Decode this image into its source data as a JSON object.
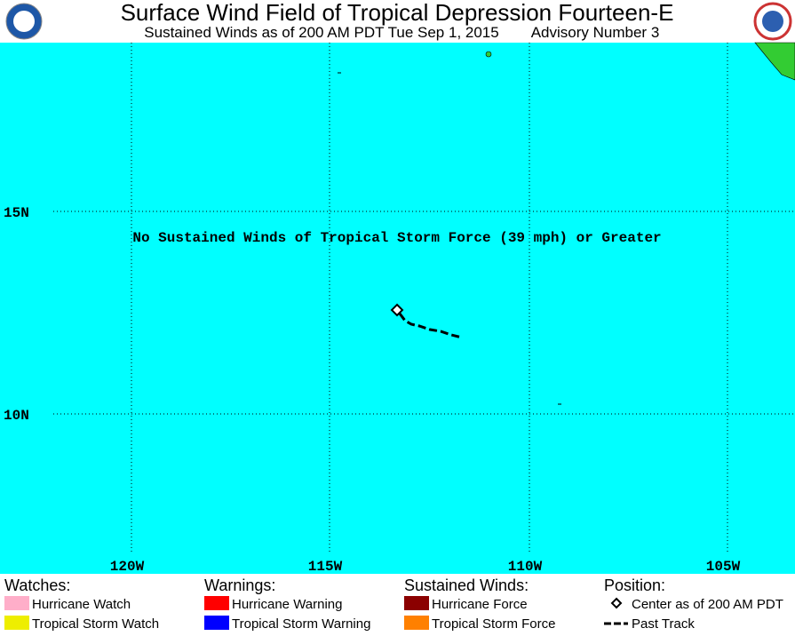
{
  "header": {
    "title": "Surface Wind Field of Tropical Depression Fourteen-E",
    "subtitle": "Sustained Winds as of 200 AM PDT Tue Sep 1, 2015",
    "advisory": "Advisory Number 3"
  },
  "map": {
    "note": "No Sustained Winds of Tropical Storm Force (39 mph) or Greater",
    "lat_labels": [
      "15N",
      "10N"
    ],
    "lon_labels": [
      "120W",
      "115W",
      "110W",
      "105W"
    ]
  },
  "legend": [
    {
      "title": "Watches:",
      "items": [
        "Hurricane Watch",
        "Tropical Storm Watch"
      ]
    },
    {
      "title": "Warnings:",
      "items": [
        "Hurricane Warning",
        "Tropical Storm Warning"
      ]
    },
    {
      "title": "Sustained Winds:",
      "items": [
        "Hurricane Force",
        "Tropical Storm Force"
      ]
    },
    {
      "title": "Position:",
      "items": [
        "Center as of 200 AM PDT",
        "Past Track"
      ]
    }
  ]
}
